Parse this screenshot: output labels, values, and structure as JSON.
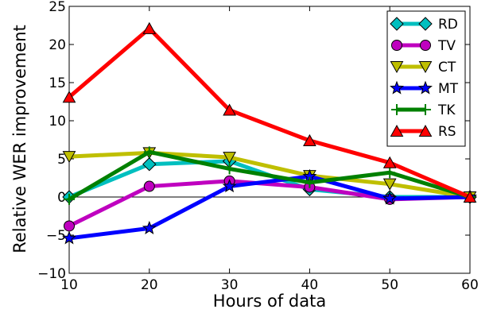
{
  "chart_data": {
    "type": "line",
    "xlabel": "Hours of data",
    "ylabel": "Relative WER improvement",
    "xlim": [
      10,
      60
    ],
    "ylim": [
      -10,
      25
    ],
    "x_ticks": [
      "10",
      "20",
      "30",
      "40",
      "50",
      "60"
    ],
    "y_ticks": [
      "−10",
      "−5",
      "0",
      "5",
      "10",
      "15",
      "20",
      "25"
    ],
    "grid": false,
    "zero_line": true,
    "legend_position": "top-right",
    "x": [
      10,
      20,
      30,
      40,
      50,
      60
    ],
    "series": [
      {
        "name": "RD",
        "color": "#00bfbf",
        "marker": "diamond",
        "values": [
          0.0,
          4.3,
          4.7,
          1.0,
          0.0,
          0.0
        ]
      },
      {
        "name": "TV",
        "color": "#bf00bf",
        "marker": "circle",
        "values": [
          -3.8,
          1.4,
          2.1,
          1.3,
          -0.3,
          0.0
        ]
      },
      {
        "name": "CT",
        "color": "#bfbf00",
        "marker": "triangle-down",
        "values": [
          5.3,
          5.8,
          5.2,
          2.8,
          1.7,
          0.0
        ]
      },
      {
        "name": "MT",
        "color": "#0000ff",
        "marker": "star",
        "values": [
          -5.4,
          -4.1,
          1.4,
          2.7,
          -0.2,
          0.0
        ]
      },
      {
        "name": "TK",
        "color": "#008000",
        "marker": "plus",
        "values": [
          -0.3,
          5.9,
          3.7,
          1.9,
          3.2,
          0.0
        ]
      },
      {
        "name": "RS",
        "color": "#ff0000",
        "marker": "triangle-up",
        "values": [
          13.1,
          22.1,
          11.4,
          7.4,
          4.5,
          0.0
        ]
      }
    ]
  }
}
